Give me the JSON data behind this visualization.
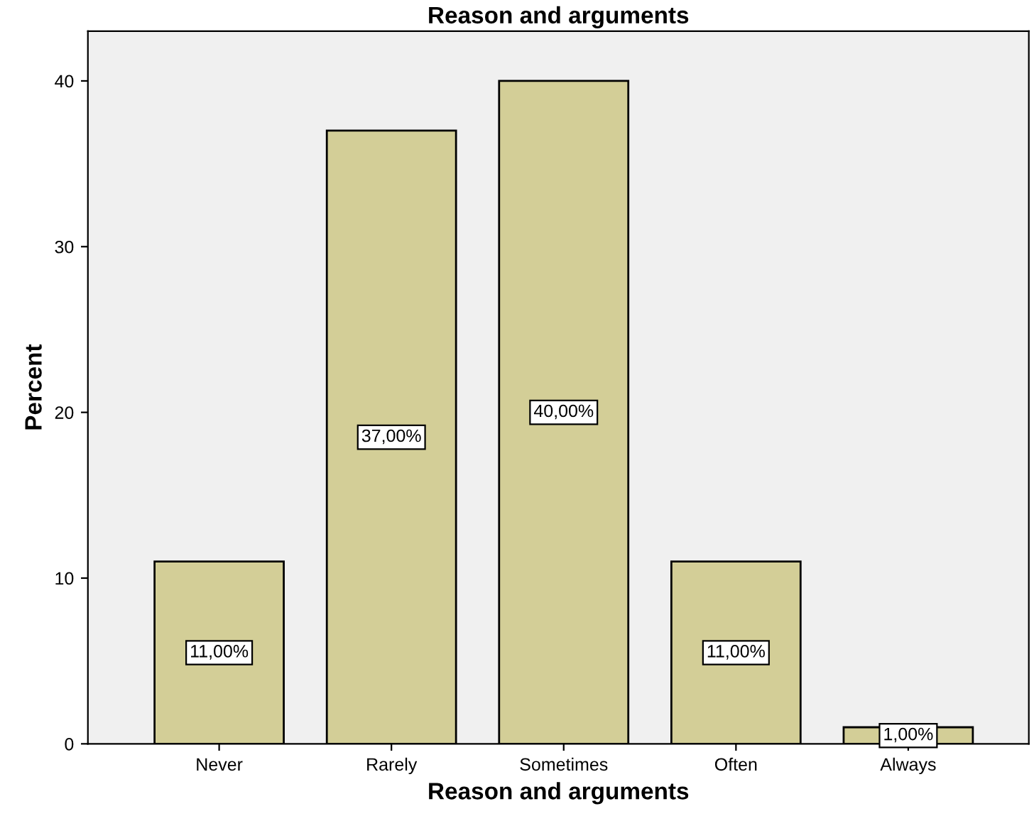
{
  "chart_data": {
    "type": "bar",
    "title": "Reason and arguments",
    "xlabel": "Reason and arguments",
    "ylabel": "Percent",
    "categories": [
      "Never",
      "Rarely",
      "Sometimes",
      "Often",
      "Always"
    ],
    "values": [
      11,
      37,
      40,
      11,
      1
    ],
    "value_labels": [
      "11,00%",
      "37,00%",
      "40,00%",
      "11,00%",
      "1,00%"
    ],
    "color": "#d3ce97",
    "ylim": [
      0,
      43
    ],
    "yticks": [
      0,
      10,
      20,
      30,
      40
    ],
    "grid": false,
    "legend": false
  }
}
